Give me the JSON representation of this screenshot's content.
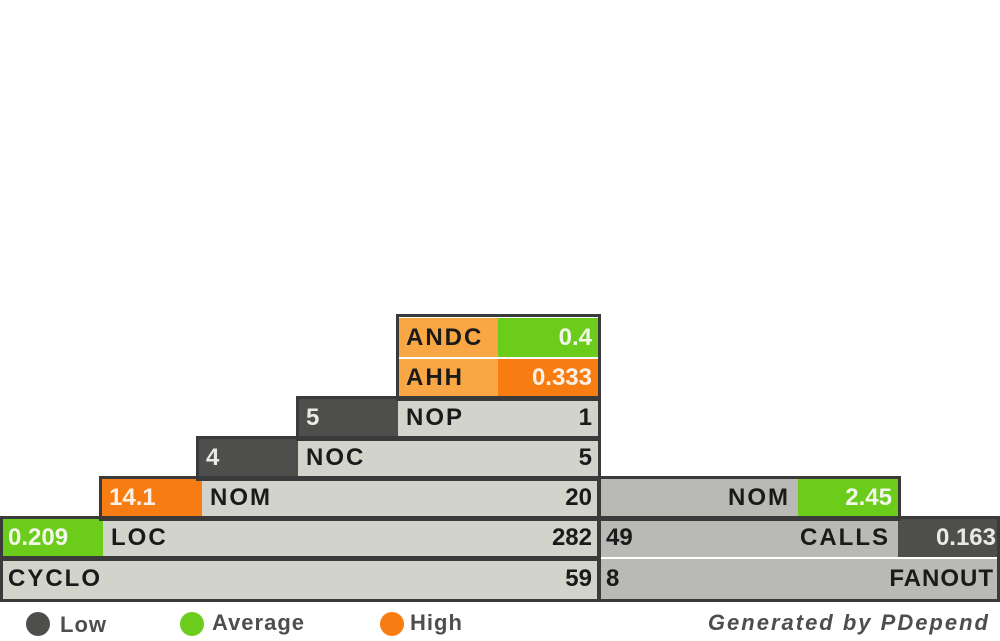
{
  "chart_data": {
    "type": "table",
    "left_pyramid": {
      "rows": [
        {
          "metric": "ANDC",
          "value": "0.4",
          "level": "Average"
        },
        {
          "metric": "AHH",
          "value": "0.333",
          "level": "High"
        },
        {
          "metric": "NOP",
          "value": "1",
          "ratio": "5",
          "ratio_level": "Low"
        },
        {
          "metric": "NOC",
          "value": "5",
          "ratio": "4",
          "ratio_level": "Low"
        },
        {
          "metric": "NOM",
          "value": "20",
          "ratio": "14.1",
          "ratio_level": "High"
        },
        {
          "metric": "LOC",
          "value": "282",
          "ratio": "0.209",
          "ratio_level": "Average"
        },
        {
          "metric": "CYCLO",
          "value": "59"
        }
      ]
    },
    "right_pyramid": {
      "rows": [
        {
          "metric": "NOM",
          "ratio": "2.45",
          "ratio_level": "Average"
        },
        {
          "metric": "CALLS",
          "value": "49",
          "ratio": "0.163",
          "ratio_level": "Low"
        },
        {
          "metric": "FANOUT",
          "value": "8"
        }
      ]
    },
    "legend": [
      {
        "label": "Low",
        "color": "#4e4f4d"
      },
      {
        "label": "Average",
        "color": "#6bcc1c"
      },
      {
        "label": "High",
        "color": "#f77c12"
      }
    ],
    "credit": "Generated  by  PDepend"
  }
}
